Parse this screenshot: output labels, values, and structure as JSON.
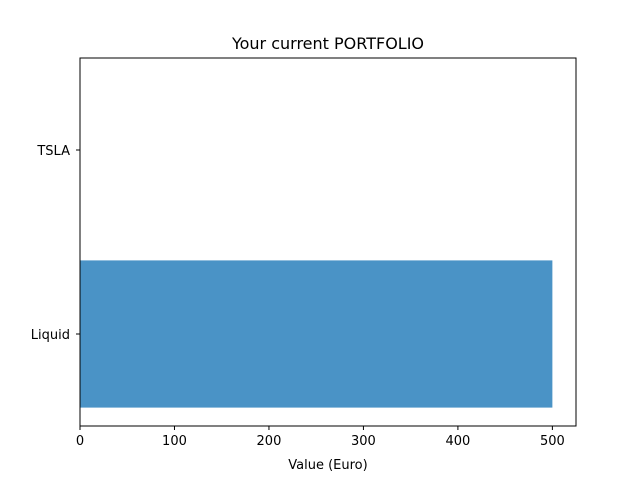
{
  "chart_data": {
    "type": "bar",
    "orientation": "horizontal",
    "title": "Your current PORTFOLIO",
    "xlabel": "Value (Euro)",
    "ylabel": "",
    "categories": [
      "Liquid",
      "TSLA"
    ],
    "values": [
      500,
      0
    ],
    "xlim": [
      0,
      525
    ],
    "xticks": [
      0,
      100,
      200,
      300,
      400,
      500
    ],
    "bar_color": "#4a93c6",
    "grid": false,
    "legend": "none"
  }
}
